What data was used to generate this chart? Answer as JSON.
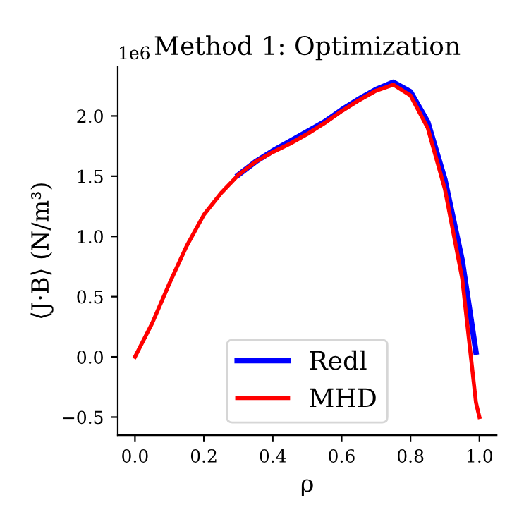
{
  "chart_data": {
    "type": "line",
    "title": "Method 1: Optimization",
    "xlabel": "ρ",
    "ylabel": "⟨J·B⟩ (N/m³)",
    "annotations": [
      "1e6"
    ],
    "series": [
      {
        "name": "Redl",
        "color": "#0000ff",
        "x": [
          0.3,
          0.35,
          0.4,
          0.45,
          0.5,
          0.55,
          0.6,
          0.65,
          0.7,
          0.75,
          0.8,
          0.85,
          0.9,
          0.95,
          0.99
        ],
        "values": [
          1.51,
          1.62,
          1.71,
          1.79,
          1.87,
          1.95,
          2.05,
          2.14,
          2.22,
          2.28,
          2.2,
          1.95,
          1.47,
          0.8,
          0.04
        ]
      },
      {
        "name": "MHD",
        "color": "#ff0000",
        "x": [
          0,
          0.05,
          0.1,
          0.15,
          0.2,
          0.25,
          0.3,
          0.35,
          0.4,
          0.45,
          0.5,
          0.55,
          0.6,
          0.65,
          0.7,
          0.75,
          0.8,
          0.85,
          0.9,
          0.95,
          0.99,
          1.0
        ],
        "values": [
          0,
          0.28,
          0.61,
          0.92,
          1.18,
          1.36,
          1.51,
          1.62,
          1.7,
          1.77,
          1.85,
          1.94,
          2.04,
          2.13,
          2.21,
          2.26,
          2.17,
          1.9,
          1.39,
          0.65,
          -0.38,
          -0.5
        ]
      }
    ],
    "xlim": [
      -0.05,
      1.05
    ],
    "xticks": [
      {
        "value": 0,
        "label": "0.0"
      },
      0.2,
      0.4,
      0.6,
      0.8,
      {
        "value": 1,
        "label": "1.0"
      }
    ],
    "ylim": [
      -0.65,
      2.41
    ],
    "yticks": [
      {
        "value": -0.5,
        "label": "−0.5"
      },
      {
        "value": 0,
        "label": "0.0"
      },
      0.5,
      {
        "value": 1,
        "label": "1.0"
      },
      1.5,
      {
        "value": 2,
        "label": "2.0"
      }
    ],
    "legend": "bottom",
    "grid": false,
    "marker": "none",
    "line_style": "solid"
  }
}
